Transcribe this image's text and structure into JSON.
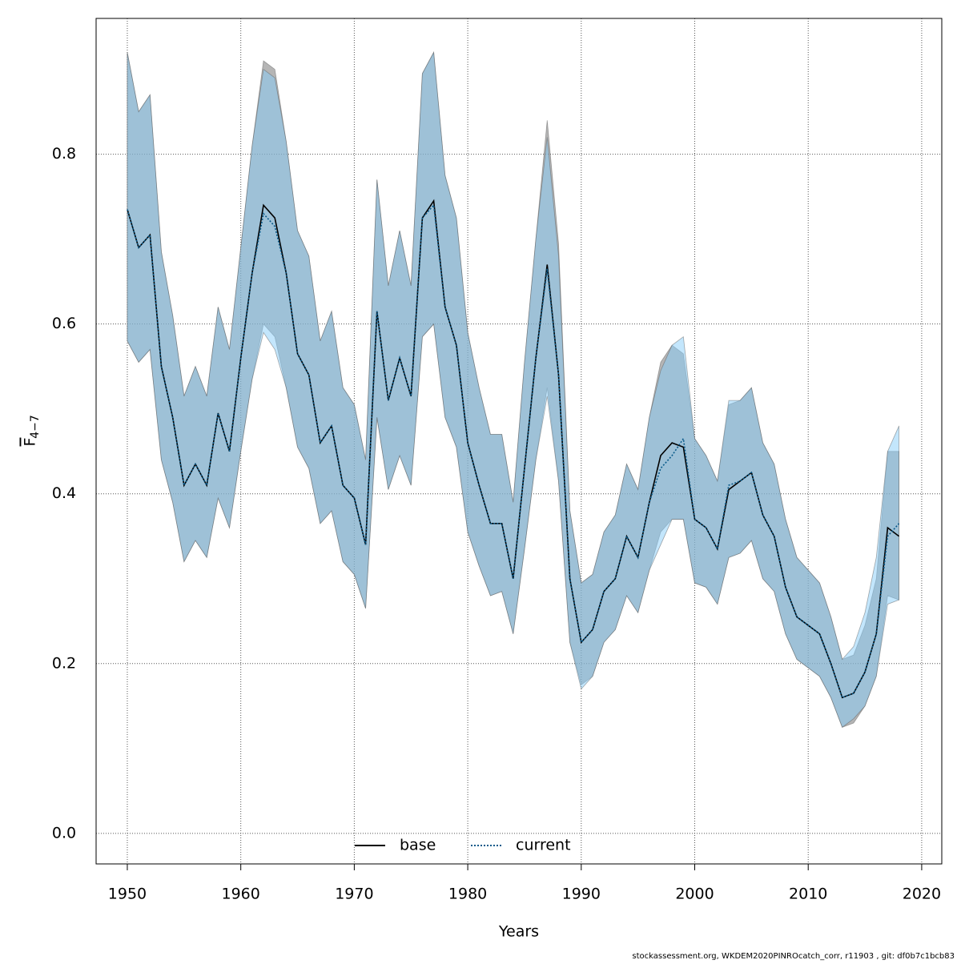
{
  "chart_data": {
    "type": "line",
    "xlabel": "Years",
    "ylabel": "F",
    "ylabel_sub": "4−7",
    "footer": "stockassessment.org, WKDEM2020PINROcatch_corr, r11903 , git: df0b7c1bcb83",
    "x": [
      1950,
      1951,
      1952,
      1953,
      1954,
      1955,
      1956,
      1957,
      1958,
      1959,
      1960,
      1961,
      1962,
      1963,
      1964,
      1965,
      1966,
      1967,
      1968,
      1969,
      1970,
      1971,
      1972,
      1973,
      1974,
      1975,
      1976,
      1977,
      1978,
      1979,
      1980,
      1981,
      1982,
      1983,
      1984,
      1985,
      1986,
      1987,
      1988,
      1989,
      1990,
      1991,
      1992,
      1993,
      1994,
      1995,
      1996,
      1997,
      1998,
      1999,
      2000,
      2001,
      2002,
      2003,
      2004,
      2005,
      2006,
      2007,
      2008,
      2009,
      2010,
      2011,
      2012,
      2013,
      2014,
      2015,
      2016,
      2017,
      2018
    ],
    "xlim": [
      1947.25,
      2021.77
    ],
    "xticks": [
      1950,
      1960,
      1970,
      1980,
      1990,
      2000,
      2010,
      2020
    ],
    "ylim": [
      -0.036,
      0.96
    ],
    "yticks": [
      {
        "value": 0,
        "label": "0.0"
      },
      0.2,
      0.4,
      0.6,
      0.8
    ],
    "grid": true,
    "legend": "bottom",
    "series": [
      {
        "name": "base",
        "color": "#000000",
        "linestyle": "solid",
        "band_color": "rgba(120,120,120,0.55)",
        "values": [
          0.735,
          0.69,
          0.705,
          0.55,
          0.49,
          0.41,
          0.435,
          0.41,
          0.495,
          0.45,
          0.56,
          0.66,
          0.74,
          0.725,
          0.66,
          0.565,
          0.54,
          0.46,
          0.48,
          0.41,
          0.395,
          0.34,
          0.615,
          0.51,
          0.56,
          0.515,
          0.725,
          0.745,
          0.62,
          0.575,
          0.46,
          0.41,
          0.365,
          0.365,
          0.3,
          0.43,
          0.56,
          0.67,
          0.54,
          0.3,
          0.225,
          0.24,
          0.285,
          0.3,
          0.35,
          0.325,
          0.39,
          0.445,
          0.46,
          0.455,
          0.37,
          0.36,
          0.335,
          0.405,
          0.415,
          0.425,
          0.375,
          0.35,
          0.29,
          0.255,
          0.245,
          0.235,
          0.2,
          0.16,
          0.165,
          0.19,
          0.235,
          0.36,
          0.35
        ],
        "upper": [
          0.92,
          0.85,
          0.87,
          0.685,
          0.61,
          0.515,
          0.55,
          0.515,
          0.62,
          0.57,
          0.69,
          0.81,
          0.91,
          0.9,
          0.815,
          0.71,
          0.68,
          0.58,
          0.615,
          0.525,
          0.505,
          0.44,
          0.77,
          0.645,
          0.71,
          0.645,
          0.895,
          0.92,
          0.775,
          0.725,
          0.59,
          0.525,
          0.47,
          0.47,
          0.39,
          0.555,
          0.7,
          0.84,
          0.695,
          0.38,
          0.295,
          0.305,
          0.355,
          0.375,
          0.435,
          0.405,
          0.49,
          0.555,
          0.575,
          0.565,
          0.465,
          0.445,
          0.415,
          0.505,
          0.51,
          0.525,
          0.46,
          0.435,
          0.37,
          0.325,
          0.31,
          0.295,
          0.255,
          0.205,
          0.21,
          0.245,
          0.3,
          0.45,
          0.45
        ],
        "lower": [
          0.58,
          0.555,
          0.57,
          0.44,
          0.39,
          0.32,
          0.345,
          0.325,
          0.395,
          0.36,
          0.45,
          0.535,
          0.6,
          0.585,
          0.525,
          0.455,
          0.43,
          0.365,
          0.38,
          0.32,
          0.305,
          0.265,
          0.49,
          0.405,
          0.445,
          0.41,
          0.585,
          0.6,
          0.49,
          0.455,
          0.355,
          0.315,
          0.28,
          0.285,
          0.235,
          0.335,
          0.44,
          0.525,
          0.415,
          0.225,
          0.175,
          0.185,
          0.225,
          0.24,
          0.28,
          0.26,
          0.31,
          0.355,
          0.37,
          0.37,
          0.295,
          0.29,
          0.27,
          0.325,
          0.33,
          0.345,
          0.3,
          0.285,
          0.235,
          0.205,
          0.195,
          0.185,
          0.16,
          0.125,
          0.13,
          0.15,
          0.185,
          0.28,
          0.275
        ]
      },
      {
        "name": "current",
        "color": "#0a5a8a",
        "linestyle": "dotted",
        "band_color": "rgba(135,206,250,0.5)",
        "values": [
          0.735,
          0.69,
          0.705,
          0.55,
          0.49,
          0.41,
          0.435,
          0.41,
          0.495,
          0.45,
          0.56,
          0.66,
          0.73,
          0.715,
          0.66,
          0.565,
          0.54,
          0.46,
          0.48,
          0.41,
          0.395,
          0.34,
          0.615,
          0.51,
          0.56,
          0.515,
          0.725,
          0.74,
          0.62,
          0.575,
          0.46,
          0.41,
          0.365,
          0.365,
          0.3,
          0.43,
          0.56,
          0.665,
          0.54,
          0.3,
          0.225,
          0.24,
          0.285,
          0.3,
          0.35,
          0.325,
          0.39,
          0.43,
          0.445,
          0.465,
          0.37,
          0.36,
          0.335,
          0.41,
          0.415,
          0.425,
          0.375,
          0.35,
          0.29,
          0.255,
          0.245,
          0.235,
          0.2,
          0.16,
          0.165,
          0.19,
          0.235,
          0.35,
          0.365
        ],
        "upper": [
          0.92,
          0.85,
          0.87,
          0.685,
          0.61,
          0.515,
          0.55,
          0.515,
          0.62,
          0.57,
          0.69,
          0.81,
          0.9,
          0.89,
          0.815,
          0.71,
          0.68,
          0.58,
          0.615,
          0.525,
          0.505,
          0.44,
          0.77,
          0.645,
          0.71,
          0.645,
          0.895,
          0.92,
          0.775,
          0.725,
          0.59,
          0.525,
          0.47,
          0.47,
          0.39,
          0.555,
          0.7,
          0.82,
          0.68,
          0.38,
          0.295,
          0.305,
          0.355,
          0.375,
          0.435,
          0.405,
          0.49,
          0.545,
          0.575,
          0.585,
          0.465,
          0.445,
          0.415,
          0.51,
          0.51,
          0.525,
          0.46,
          0.435,
          0.37,
          0.325,
          0.31,
          0.295,
          0.255,
          0.205,
          0.22,
          0.26,
          0.325,
          0.45,
          0.48
        ],
        "lower": [
          0.58,
          0.555,
          0.57,
          0.44,
          0.39,
          0.32,
          0.345,
          0.325,
          0.395,
          0.36,
          0.45,
          0.535,
          0.59,
          0.57,
          0.525,
          0.455,
          0.43,
          0.365,
          0.38,
          0.32,
          0.305,
          0.265,
          0.49,
          0.405,
          0.445,
          0.41,
          0.585,
          0.6,
          0.49,
          0.455,
          0.355,
          0.315,
          0.28,
          0.285,
          0.235,
          0.335,
          0.44,
          0.515,
          0.415,
          0.225,
          0.17,
          0.185,
          0.225,
          0.24,
          0.28,
          0.26,
          0.31,
          0.34,
          0.37,
          0.37,
          0.295,
          0.29,
          0.27,
          0.325,
          0.33,
          0.345,
          0.3,
          0.285,
          0.235,
          0.205,
          0.195,
          0.185,
          0.16,
          0.125,
          0.135,
          0.15,
          0.185,
          0.27,
          0.275
        ]
      }
    ]
  }
}
